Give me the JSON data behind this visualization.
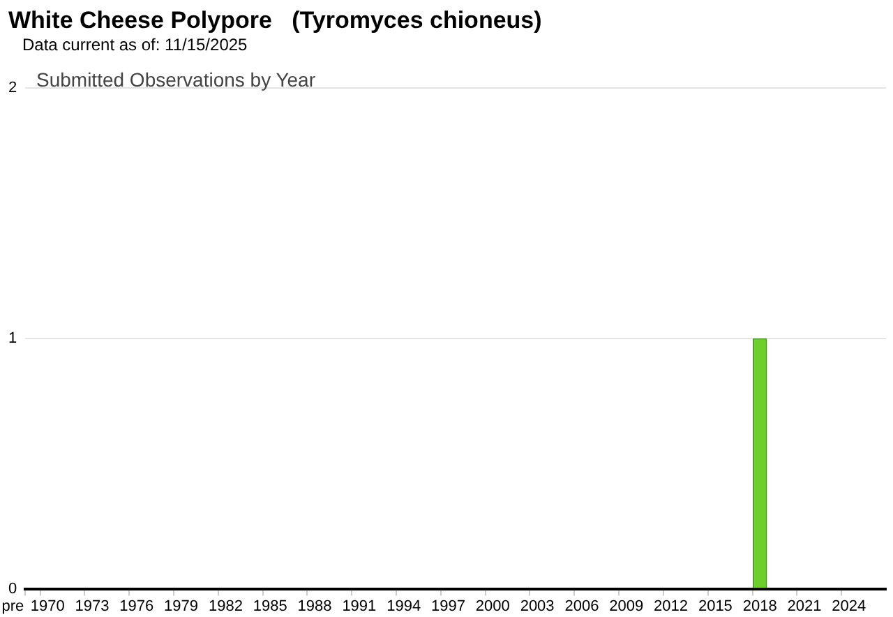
{
  "chart_data": {
    "type": "bar",
    "title": "White Cheese Polypore   (Tyromyces chioneus)",
    "subtitle": "Data current as of: 11/15/2025",
    "annotations": [
      "Submitted Observations by Year"
    ],
    "categories": [
      "pre",
      "1970",
      null,
      null,
      "1973",
      null,
      null,
      "1976",
      null,
      null,
      "1979",
      null,
      null,
      "1982",
      null,
      null,
      "1985",
      null,
      null,
      "1988",
      null,
      null,
      "1991",
      null,
      null,
      "1994",
      null,
      null,
      "1997",
      null,
      null,
      "2000",
      null,
      null,
      "2003",
      null,
      null,
      "2006",
      null,
      null,
      "2009",
      null,
      null,
      "2012",
      null,
      null,
      "2015",
      null,
      null,
      "2018",
      null,
      null,
      "2021",
      null,
      null,
      "2024",
      null,
      null
    ],
    "values": [
      0,
      0,
      0,
      0,
      0,
      0,
      0,
      0,
      0,
      0,
      0,
      0,
      0,
      0,
      0,
      0,
      0,
      0,
      0,
      0,
      0,
      0,
      0,
      0,
      0,
      0,
      0,
      0,
      0,
      0,
      0,
      0,
      0,
      0,
      0,
      0,
      0,
      0,
      0,
      0,
      0,
      0,
      0,
      0,
      0,
      0,
      0,
      0,
      0,
      1,
      0,
      0,
      0,
      0,
      0,
      0,
      0,
      0
    ],
    "color": "#6ccf2c",
    "ylim": [
      0,
      2
    ],
    "yticks": [
      0,
      1,
      2
    ],
    "grid": "y"
  }
}
